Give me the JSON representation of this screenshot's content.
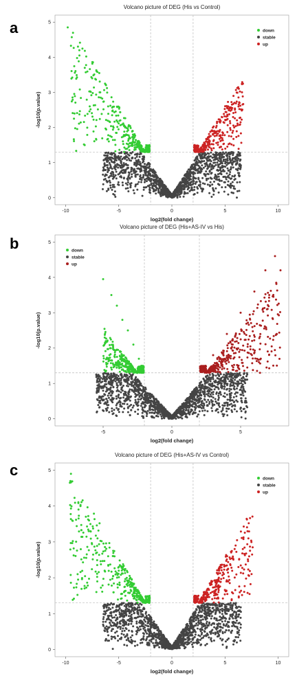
{
  "chart_data": [
    {
      "panel": "a",
      "type": "scatter",
      "title": "Volcano picture of DEG (His vs Control)",
      "xlabel": "log2(fold change)",
      "ylabel": "-log10(p.value)",
      "xlim": [
        -11,
        11
      ],
      "ylim": [
        -0.2,
        5.2
      ],
      "xticks": [
        -10,
        -5,
        0,
        5,
        10
      ],
      "yticks": [
        0,
        1,
        2,
        3,
        4,
        5
      ],
      "fc_threshold": [
        -2,
        2
      ],
      "p_threshold": 1.3,
      "legend": {
        "position": "top-right",
        "entries": [
          "down",
          "stable",
          "up"
        ]
      },
      "series": [
        {
          "name": "down",
          "color": "#33cc33",
          "sample_points": [
            [
              -9.8,
              4.85
            ],
            [
              -8.7,
              4.05
            ],
            [
              -8.2,
              3.7
            ],
            [
              -7.5,
              3.4
            ],
            [
              -6.8,
              3.0
            ],
            [
              -6.0,
              2.6
            ],
            [
              -5.2,
              2.2
            ],
            [
              -4.3,
              1.8
            ],
            [
              -3.5,
              1.5
            ],
            [
              -2.5,
              1.35
            ]
          ]
        },
        {
          "name": "stable",
          "color": "#444444",
          "sample_points": [
            [
              -4.0,
              1.2
            ],
            [
              -3.0,
              0.8
            ],
            [
              -2.0,
              0.5
            ],
            [
              -1.0,
              0.2
            ],
            [
              0.0,
              0.02
            ],
            [
              1.0,
              0.25
            ],
            [
              2.0,
              0.55
            ],
            [
              3.0,
              0.85
            ],
            [
              4.0,
              1.15
            ]
          ]
        },
        {
          "name": "up",
          "color": "#cc2222",
          "sample_points": [
            [
              2.5,
              1.35
            ],
            [
              3.2,
              1.6
            ],
            [
              4.0,
              1.9
            ],
            [
              4.7,
              2.3
            ],
            [
              5.3,
              2.6
            ],
            [
              5.8,
              2.9
            ],
            [
              6.3,
              3.1
            ],
            [
              6.6,
              3.0
            ]
          ]
        }
      ],
      "gen": {
        "down": [
          -9.5,
          -2.1,
          360
        ],
        "up": [
          2.1,
          6.8,
          330
        ],
        "stable": [
          -6.5,
          6.5,
          1500
        ],
        "spread": [
          0.95,
          1.05
        ],
        "seed": 11
      }
    },
    {
      "panel": "b",
      "type": "scatter",
      "title": "Volcano picture of DEG (His+AS-IV  vs  His)",
      "xlabel": "log2(fold change)",
      "ylabel": "-log10(p.value)",
      "xlim": [
        -8.5,
        8.5
      ],
      "ylim": [
        -0.2,
        5.2
      ],
      "xticks": [
        -5,
        0,
        5
      ],
      "yticks": [
        0,
        1,
        2,
        3,
        4,
        5
      ],
      "fc_threshold": [
        -2,
        2
      ],
      "p_threshold": 1.3,
      "legend": {
        "position": "top-left",
        "entries": [
          "down",
          "stable",
          "up"
        ]
      },
      "series": [
        {
          "name": "down",
          "color": "#33cc33",
          "sample_points": [
            [
              -5.0,
              3.95
            ],
            [
              -4.4,
              3.5
            ],
            [
              -4.0,
              3.2
            ],
            [
              -3.6,
              2.8
            ],
            [
              -3.2,
              2.5
            ],
            [
              -2.8,
              2.1
            ],
            [
              -2.4,
              1.7
            ],
            [
              -2.1,
              1.35
            ]
          ]
        },
        {
          "name": "stable",
          "color": "#444444",
          "sample_points": [
            [
              -4.0,
              1.1
            ],
            [
              -2.5,
              0.9
            ],
            [
              -1.5,
              0.5
            ],
            [
              -0.5,
              0.15
            ],
            [
              0.0,
              0.02
            ],
            [
              1.0,
              0.4
            ],
            [
              2.5,
              0.9
            ],
            [
              4.0,
              1.2
            ]
          ]
        },
        {
          "name": "up",
          "color": "#aa1f1f",
          "sample_points": [
            [
              2.2,
              1.4
            ],
            [
              3.0,
              1.8
            ],
            [
              4.0,
              2.4
            ],
            [
              5.0,
              3.0
            ],
            [
              6.0,
              3.6
            ],
            [
              6.8,
              4.2
            ],
            [
              7.5,
              4.6
            ],
            [
              7.9,
              4.2
            ]
          ]
        }
      ],
      "gen": {
        "down": [
          -5.0,
          -2.05,
          350
        ],
        "up": [
          2.05,
          7.9,
          420
        ],
        "stable": [
          -5.5,
          5.5,
          1700
        ],
        "spread": [
          0.95,
          1.05
        ],
        "seed": 23
      }
    },
    {
      "panel": "c",
      "type": "scatter",
      "title": "Volcano picture of DEG (His+AS-IV vs Control)",
      "xlabel": "log2(fold change)",
      "ylabel": "-log10(p.value)",
      "xlim": [
        -11,
        11
      ],
      "ylim": [
        -0.2,
        5.2
      ],
      "xticks": [
        -10,
        -5,
        0,
        5,
        10
      ],
      "yticks": [
        0,
        1,
        2,
        3,
        4,
        5
      ],
      "fc_threshold": [
        -2,
        2
      ],
      "p_threshold": 1.3,
      "legend": {
        "position": "top-right",
        "entries": [
          "down",
          "stable",
          "up"
        ]
      },
      "series": [
        {
          "name": "down",
          "color": "#33cc33",
          "sample_points": [
            [
              -9.5,
              4.9
            ],
            [
              -9.6,
              4.65
            ],
            [
              -8.6,
              4.0
            ],
            [
              -7.8,
              3.6
            ],
            [
              -7.0,
              3.1
            ],
            [
              -6.0,
              2.6
            ],
            [
              -5.0,
              2.2
            ],
            [
              -4.0,
              1.8
            ],
            [
              -3.0,
              1.45
            ]
          ]
        },
        {
          "name": "stable",
          "color": "#444444",
          "sample_points": [
            [
              -5.0,
              1.2
            ],
            [
              -3.0,
              0.8
            ],
            [
              -2.0,
              0.5
            ],
            [
              -1.0,
              0.2
            ],
            [
              0.0,
              0.02
            ],
            [
              1.0,
              0.25
            ],
            [
              2.0,
              0.5
            ],
            [
              3.5,
              1.0
            ],
            [
              5.0,
              1.25
            ]
          ]
        },
        {
          "name": "up",
          "color": "#cc2222",
          "sample_points": [
            [
              2.3,
              1.35
            ],
            [
              3.0,
              1.6
            ],
            [
              3.8,
              1.9
            ],
            [
              4.5,
              2.3
            ],
            [
              5.2,
              2.6
            ],
            [
              6.0,
              2.9
            ],
            [
              7.2,
              3.1
            ],
            [
              7.6,
              2.85
            ]
          ]
        }
      ],
      "gen": {
        "down": [
          -9.6,
          -2.1,
          380
        ],
        "up": [
          2.1,
          7.6,
          320
        ],
        "stable": [
          -6.5,
          6.5,
          1500
        ],
        "spread": [
          0.95,
          1.05
        ],
        "seed": 37
      }
    }
  ]
}
